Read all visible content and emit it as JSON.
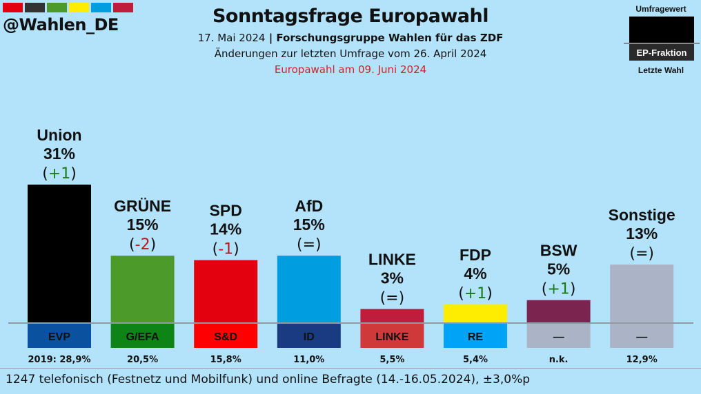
{
  "header": {
    "logo_colors": [
      "#e3000f",
      "#333333",
      "#4c9a2a",
      "#ffed00",
      "#009ee0",
      "#be1e3c"
    ],
    "handle": "@Wahlen_DE",
    "title": "Sonntagsfrage Europawahl",
    "date": "17. Mai 2024",
    "separator": " | ",
    "institute": "Forschungsgruppe Wahlen für das ZDF",
    "change_note": "Änderungen zur letzten Umfrage vom 26. April 2024",
    "election_note": "Europawahl am 09. Juni 2024"
  },
  "legend": {
    "poll_label": "Umfragewert",
    "group_label": "EP-Fraktion",
    "last_label": "Letzte Wahl"
  },
  "chart_data": {
    "type": "bar",
    "title": "Sonntagsfrage Europawahl",
    "xlabel": "",
    "ylabel": "",
    "ylim": [
      0,
      31
    ],
    "categories": [
      "Union",
      "GRÜNE",
      "SPD",
      "AfD",
      "LINKE",
      "FDP",
      "BSW",
      "Sonstige"
    ],
    "values": [
      31,
      15,
      14,
      15,
      3,
      4,
      5,
      13
    ],
    "value_labels": [
      "31%",
      "15%",
      "14%",
      "15%",
      "3%",
      "4%",
      "5%",
      "13%"
    ],
    "changes": [
      "+1",
      "-2",
      "-1",
      "=",
      "=",
      "+1",
      "+1",
      "="
    ],
    "change_colors": [
      "#1a7a1a",
      "#c0141c",
      "#c0141c",
      "#111111",
      "#111111",
      "#1a7a1a",
      "#1a7a1a",
      "#111111"
    ],
    "bar_colors": [
      "#000000",
      "#4c9a2a",
      "#e3000f",
      "#009ee0",
      "#be1e3c",
      "#ffed00",
      "#7b2450",
      "#aab4c6"
    ],
    "ep_groups": [
      "EVP",
      "G/EFA",
      "S&D",
      "ID",
      "LINKE",
      "RE",
      "—",
      "—"
    ],
    "ep_group_colors": [
      "#0a52a0",
      "#0e8417",
      "#ff0000",
      "#1a3a82",
      "#d0393a",
      "#00a3f5",
      "#aab4c6",
      "#aab4c6"
    ],
    "last_election": [
      "2019: 28,9%",
      "20,5%",
      "15,8%",
      "11,0%",
      "5,5%",
      "5,4%",
      "n.k.",
      "12,9%"
    ]
  },
  "footer": {
    "methodology": "1247 telefonisch (Festnetz und Mobilfunk) und online Befragte (14.-16.05.2024), ±3,0%p"
  }
}
